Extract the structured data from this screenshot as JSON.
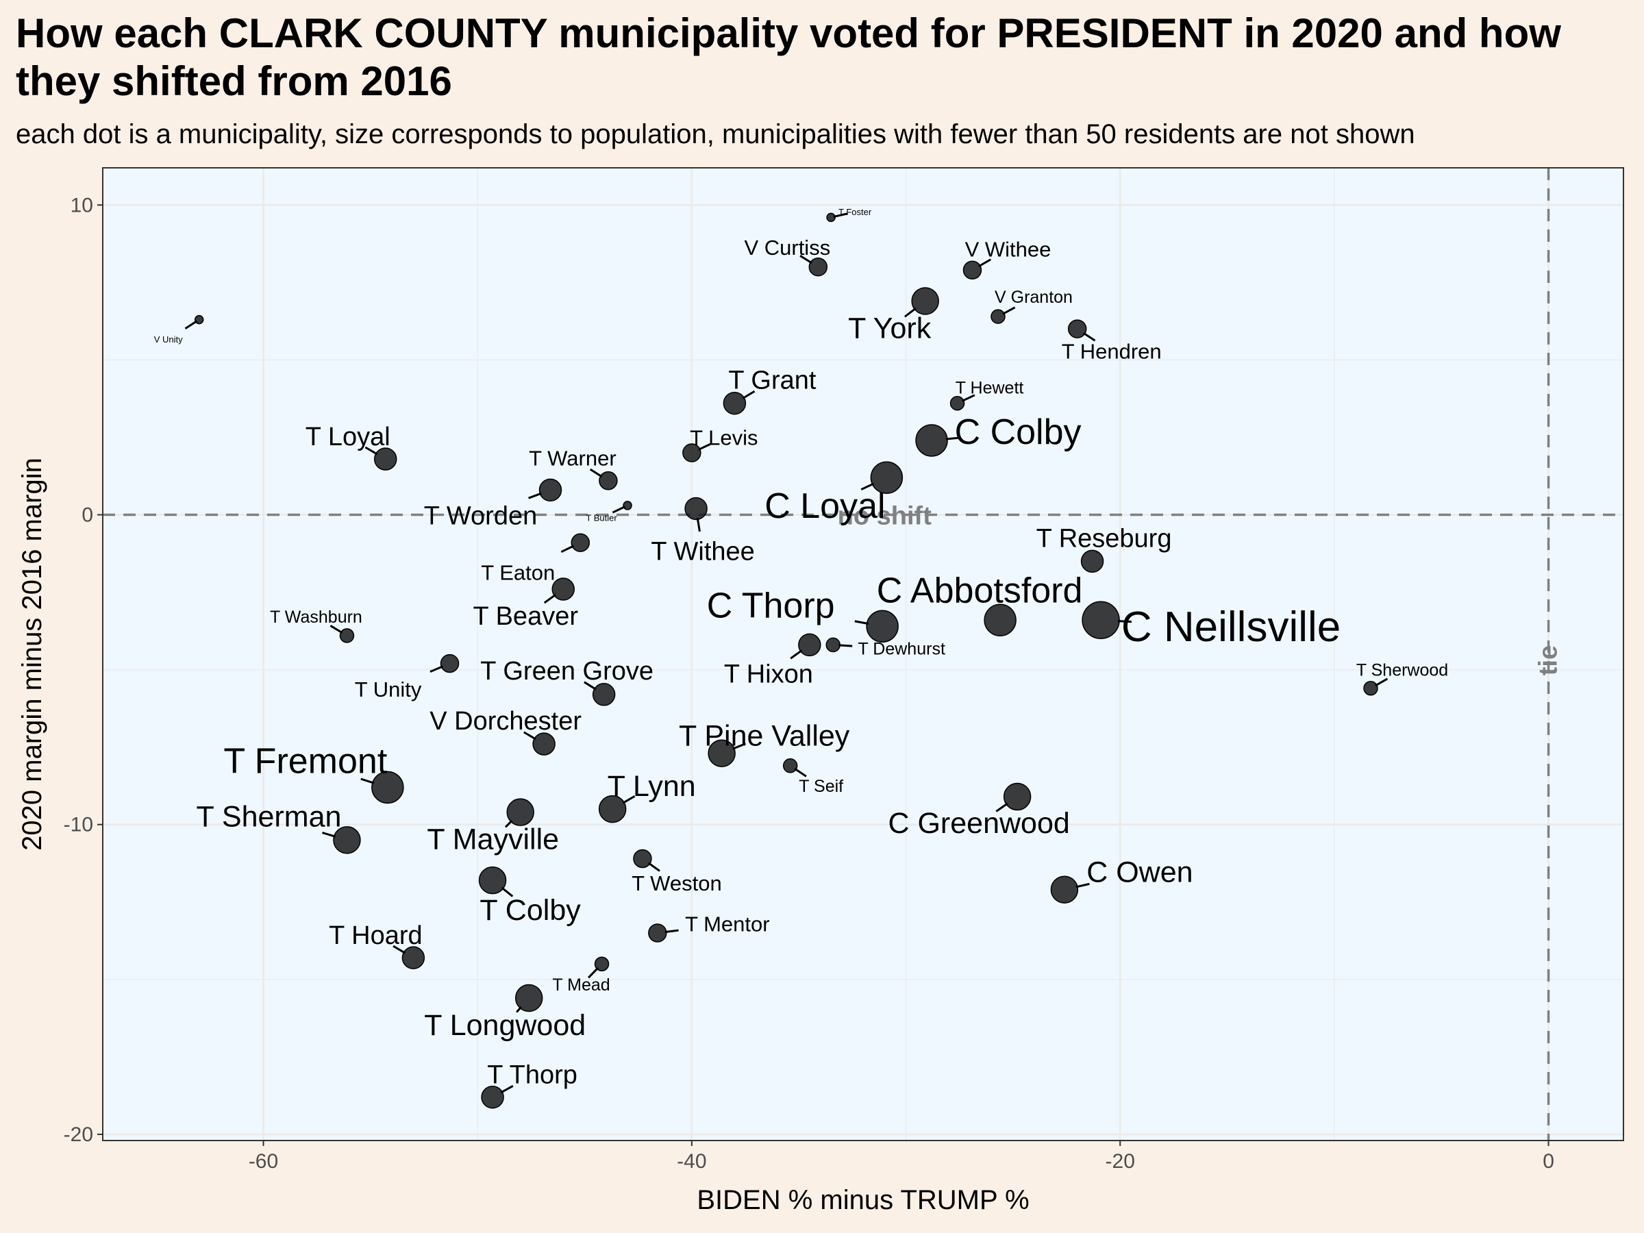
{
  "title": "How each CLARK COUNTY municipality voted for PRESIDENT in 2020 and how they shifted from 2016",
  "subtitle": "each dot is a municipality, size corresponds to population, municipalities with fewer than 50 residents are not shown",
  "chart_data": {
    "type": "scatter",
    "title": "How each CLARK COUNTY municipality voted for PRESIDENT in 2020 and how they shifted from 2016",
    "subtitle": "each dot is a municipality, size corresponds to population, municipalities with fewer than 50 residents are not shown",
    "xlabel": "BIDEN % minus TRUMP %",
    "ylabel": "2020 margin minus 2016 margin",
    "xlim": [
      -67.5,
      3.5
    ],
    "ylim": [
      -20.2,
      11.2
    ],
    "x_ticks": [
      -60,
      -40,
      -20,
      0
    ],
    "y_ticks": [
      -20,
      -10,
      0,
      10
    ],
    "grid": true,
    "reference_lines": [
      {
        "axis": "y",
        "value": 0,
        "label": "no shift"
      },
      {
        "axis": "x",
        "value": 0,
        "label": "tie"
      }
    ],
    "colors": {
      "panel": "#f0f8ff",
      "background": "#faf0e6",
      "points": "#1a1a1a",
      "reference": "#808080",
      "grid": "#ebebeb"
    },
    "points": [
      {
        "name": "T Foster",
        "x": -33.5,
        "y": 9.6,
        "size": 1
      },
      {
        "name": "V Curtiss",
        "x": -34.1,
        "y": 8.0,
        "size": 3
      },
      {
        "name": "V Withee",
        "x": -26.9,
        "y": 7.9,
        "size": 3
      },
      {
        "name": "T York",
        "x": -29.1,
        "y": 6.9,
        "size": 5
      },
      {
        "name": "V Granton",
        "x": -25.7,
        "y": 6.4,
        "size": 2
      },
      {
        "name": "T Hendren",
        "x": -22.0,
        "y": 6.0,
        "size": 3
      },
      {
        "name": "V Unity",
        "x": -63.0,
        "y": 6.3,
        "size": 1
      },
      {
        "name": "T Hewett",
        "x": -27.6,
        "y": 3.6,
        "size": 2
      },
      {
        "name": "T Grant",
        "x": -38.0,
        "y": 3.6,
        "size": 4
      },
      {
        "name": "C Colby",
        "x": -28.8,
        "y": 2.4,
        "size": 6
      },
      {
        "name": "T Levis",
        "x": -40.0,
        "y": 2.0,
        "size": 3
      },
      {
        "name": "T Loyal",
        "x": -54.3,
        "y": 1.8,
        "size": 4
      },
      {
        "name": "C Loyal",
        "x": -30.9,
        "y": 1.2,
        "size": 6
      },
      {
        "name": "T Warner",
        "x": -43.9,
        "y": 1.1,
        "size": 3
      },
      {
        "name": "T Worden",
        "x": -46.6,
        "y": 0.8,
        "size": 4
      },
      {
        "name": "T Butler",
        "x": -43.0,
        "y": 0.3,
        "size": 1
      },
      {
        "name": "T Withee",
        "x": -39.8,
        "y": 0.2,
        "size": 4
      },
      {
        "name": "T Eaton",
        "x": -45.2,
        "y": -0.9,
        "size": 3
      },
      {
        "name": "T Reseburg",
        "x": -21.3,
        "y": -1.5,
        "size": 4
      },
      {
        "name": "T Beaver",
        "x": -46.0,
        "y": -2.4,
        "size": 4
      },
      {
        "name": "C Abbotsford",
        "x": -25.6,
        "y": -3.4,
        "size": 6
      },
      {
        "name": "C Neillsville",
        "x": -20.9,
        "y": -3.4,
        "size": 7
      },
      {
        "name": "C Thorp",
        "x": -31.1,
        "y": -3.6,
        "size": 6
      },
      {
        "name": "T Dewhurst",
        "x": -33.4,
        "y": -4.2,
        "size": 2
      },
      {
        "name": "T Hixon",
        "x": -34.5,
        "y": -4.2,
        "size": 4
      },
      {
        "name": "T Washburn",
        "x": -56.1,
        "y": -3.9,
        "size": 2
      },
      {
        "name": "T Unity",
        "x": -51.3,
        "y": -4.8,
        "size": 3
      },
      {
        "name": "T Sherwood",
        "x": -8.3,
        "y": -5.6,
        "size": 2
      },
      {
        "name": "T Green Grove",
        "x": -44.1,
        "y": -5.8,
        "size": 4
      },
      {
        "name": "V Dorchester",
        "x": -46.9,
        "y": -7.4,
        "size": 4
      },
      {
        "name": "T Pine Valley",
        "x": -38.6,
        "y": -7.7,
        "size": 5
      },
      {
        "name": "T Seif",
        "x": -35.4,
        "y": -8.1,
        "size": 2
      },
      {
        "name": "T Fremont",
        "x": -54.2,
        "y": -8.8,
        "size": 6
      },
      {
        "name": "C Greenwood",
        "x": -24.8,
        "y": -9.1,
        "size": 5
      },
      {
        "name": "T Lynn",
        "x": -43.7,
        "y": -9.5,
        "size": 5
      },
      {
        "name": "T Mayville",
        "x": -48.0,
        "y": -9.6,
        "size": 5
      },
      {
        "name": "T Sherman",
        "x": -56.1,
        "y": -10.5,
        "size": 5
      },
      {
        "name": "T Weston",
        "x": -42.3,
        "y": -11.1,
        "size": 3
      },
      {
        "name": "T Colby",
        "x": -49.3,
        "y": -11.8,
        "size": 5
      },
      {
        "name": "C Owen",
        "x": -22.6,
        "y": -12.1,
        "size": 5
      },
      {
        "name": "T Mentor",
        "x": -41.6,
        "y": -13.5,
        "size": 3
      },
      {
        "name": "T Hoard",
        "x": -53.0,
        "y": -14.3,
        "size": 4
      },
      {
        "name": "T Mead",
        "x": -44.2,
        "y": -14.5,
        "size": 2
      },
      {
        "name": "T Longwood",
        "x": -47.6,
        "y": -15.6,
        "size": 5
      },
      {
        "name": "T Thorp",
        "x": -49.3,
        "y": -18.8,
        "size": 4
      }
    ]
  }
}
